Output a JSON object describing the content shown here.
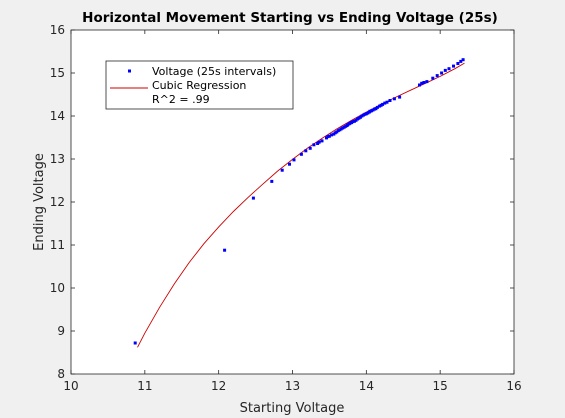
{
  "chart_data": {
    "type": "scatter",
    "title": "Horizontal Movement Starting vs Ending Voltage (25s)",
    "xlabel": "Starting Voltage",
    "ylabel": "Ending Voltage",
    "xlim": [
      10,
      16
    ],
    "ylim": [
      8,
      16
    ],
    "xticks": [
      "10",
      "11",
      "12",
      "13",
      "14",
      "15",
      "16"
    ],
    "yticks": [
      "8",
      "9",
      "10",
      "11",
      "12",
      "13",
      "14",
      "15",
      "16"
    ],
    "grid": false,
    "legend_position": "top-left",
    "series": [
      {
        "name": "Voltage (25s intervals)",
        "type": "scatter",
        "color": "#0000ff",
        "x": [
          10.87,
          12.08,
          12.47,
          12.72,
          12.86,
          12.96,
          13.02,
          13.12,
          13.18,
          13.24,
          13.29,
          13.34,
          13.36,
          13.4,
          13.46,
          13.48,
          13.5,
          13.53,
          13.56,
          13.58,
          13.6,
          13.62,
          13.64,
          13.66,
          13.68,
          13.7,
          13.72,
          13.74,
          13.75,
          13.77,
          13.79,
          13.8,
          13.82,
          13.84,
          13.86,
          13.88,
          13.9,
          13.92,
          13.94,
          13.96,
          13.98,
          14.0,
          14.02,
          14.04,
          14.05,
          14.07,
          14.09,
          14.11,
          14.13,
          14.15,
          14.18,
          14.2,
          14.22,
          14.25,
          14.28,
          14.32,
          14.38,
          14.45,
          14.72,
          14.75,
          14.78,
          14.82,
          14.9,
          14.96,
          15.02,
          15.07,
          15.12,
          15.18,
          15.24,
          15.28,
          15.31
        ],
        "y": [
          8.72,
          10.88,
          12.09,
          12.48,
          12.74,
          12.88,
          12.98,
          13.11,
          13.19,
          13.25,
          13.33,
          13.36,
          13.39,
          13.42,
          13.49,
          13.52,
          13.53,
          13.56,
          13.58,
          13.61,
          13.63,
          13.66,
          13.68,
          13.7,
          13.72,
          13.74,
          13.76,
          13.78,
          13.8,
          13.82,
          13.84,
          13.85,
          13.87,
          13.88,
          13.9,
          13.93,
          13.95,
          13.97,
          14.0,
          14.02,
          14.04,
          14.05,
          14.07,
          14.09,
          14.11,
          14.12,
          14.14,
          14.16,
          14.17,
          14.2,
          14.23,
          14.25,
          14.27,
          14.3,
          14.32,
          14.36,
          14.4,
          14.44,
          14.72,
          14.76,
          14.78,
          14.8,
          14.88,
          14.94,
          15.0,
          15.06,
          15.1,
          15.16,
          15.22,
          15.27,
          15.31
        ]
      },
      {
        "name": "Cubic Regression",
        "type": "line",
        "color": "#cc0000",
        "x": [
          10.9,
          11.0,
          11.2,
          11.4,
          11.6,
          11.8,
          12.0,
          12.2,
          12.4,
          12.6,
          12.8,
          13.0,
          13.2,
          13.4,
          13.6,
          13.8,
          14.0,
          14.2,
          14.4,
          14.6,
          14.8,
          15.0,
          15.2,
          15.33
        ],
        "y": [
          8.62,
          8.95,
          9.55,
          10.1,
          10.59,
          11.03,
          11.42,
          11.78,
          12.11,
          12.42,
          12.72,
          12.99,
          13.25,
          13.48,
          13.7,
          13.9,
          14.09,
          14.27,
          14.44,
          14.6,
          14.76,
          14.92,
          15.1,
          15.23
        ]
      }
    ],
    "legend_extra": "R^2 = .99"
  },
  "colors": {
    "figure_bg": "#f0f0f0",
    "axes_bg": "#ffffff",
    "axis": "#262626"
  }
}
